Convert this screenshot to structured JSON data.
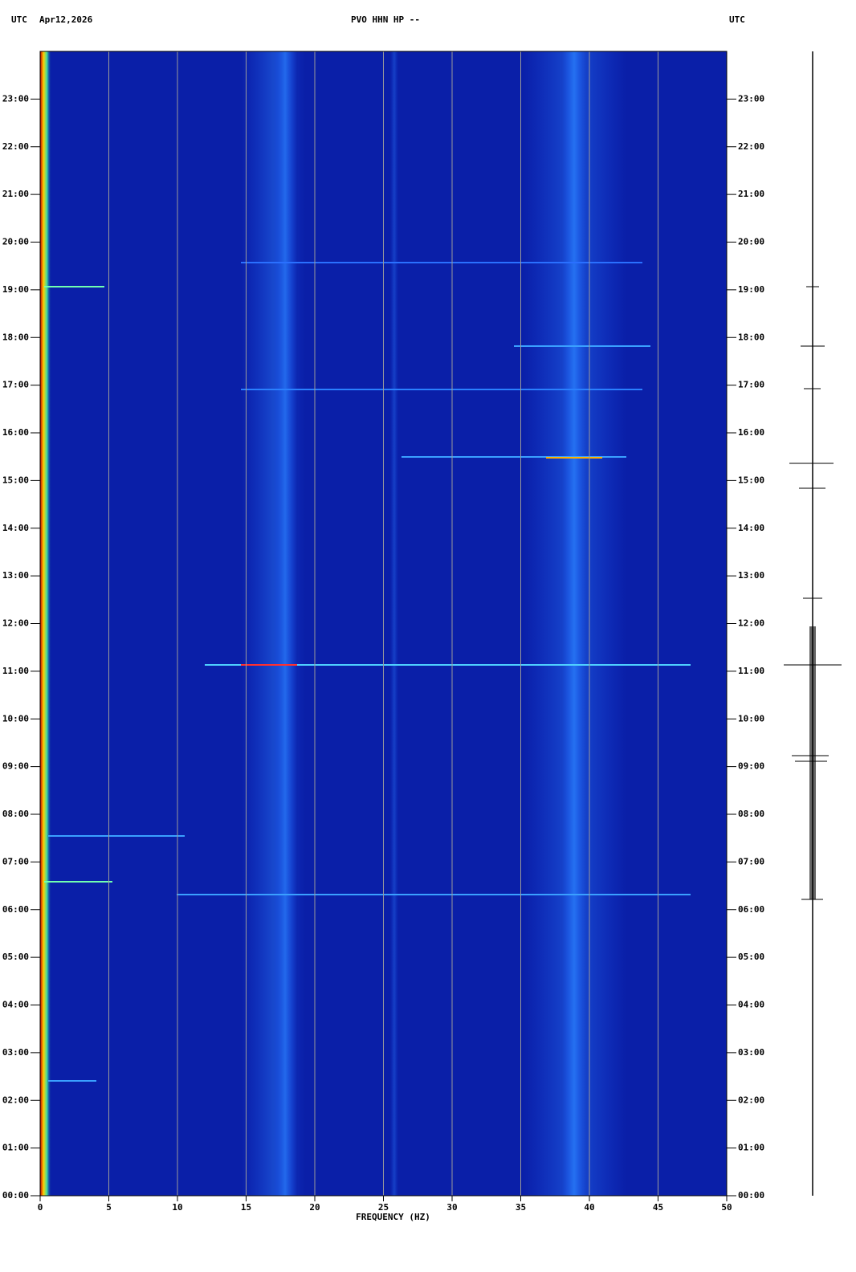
{
  "chart_data": {
    "type": "spectrogram",
    "header_left": "UTC",
    "date": "Apr12,2026",
    "title": "PVO HHN HP --",
    "header_right": "UTC",
    "xlabel": "FREQUENCY (HZ)",
    "xlim": [
      0,
      50
    ],
    "xticks": [
      0,
      5,
      10,
      15,
      20,
      25,
      30,
      35,
      40,
      45,
      50
    ],
    "ylim": [
      0,
      24
    ],
    "yticks": [
      {
        "value": 0,
        "label": "00:00"
      },
      {
        "value": 1,
        "label": "01:00"
      },
      {
        "value": 2,
        "label": "02:00"
      },
      {
        "value": 3,
        "label": "03:00"
      },
      {
        "value": 4,
        "label": "04:00"
      },
      {
        "value": 5,
        "label": "05:00"
      },
      {
        "value": 6,
        "label": "06:00"
      },
      {
        "value": 7,
        "label": "07:00"
      },
      {
        "value": 8,
        "label": "08:00"
      },
      {
        "value": 9,
        "label": "09:00"
      },
      {
        "value": 10,
        "label": "10:00"
      },
      {
        "value": 11,
        "label": "11:00"
      },
      {
        "value": 12,
        "label": "12:00"
      },
      {
        "value": 13,
        "label": "13:00"
      },
      {
        "value": 14,
        "label": "14:00"
      },
      {
        "value": 15,
        "label": "15:00"
      },
      {
        "value": 16,
        "label": "16:00"
      },
      {
        "value": 17,
        "label": "17:00"
      },
      {
        "value": 18,
        "label": "18:00"
      },
      {
        "value": 19,
        "label": "19:00"
      },
      {
        "value": 20,
        "label": "20:00"
      },
      {
        "value": 21,
        "label": "21:00"
      },
      {
        "value": 22,
        "label": "22:00"
      },
      {
        "value": 23,
        "label": "23:00"
      }
    ],
    "grid": true,
    "background": "#0a1fa8"
  }
}
